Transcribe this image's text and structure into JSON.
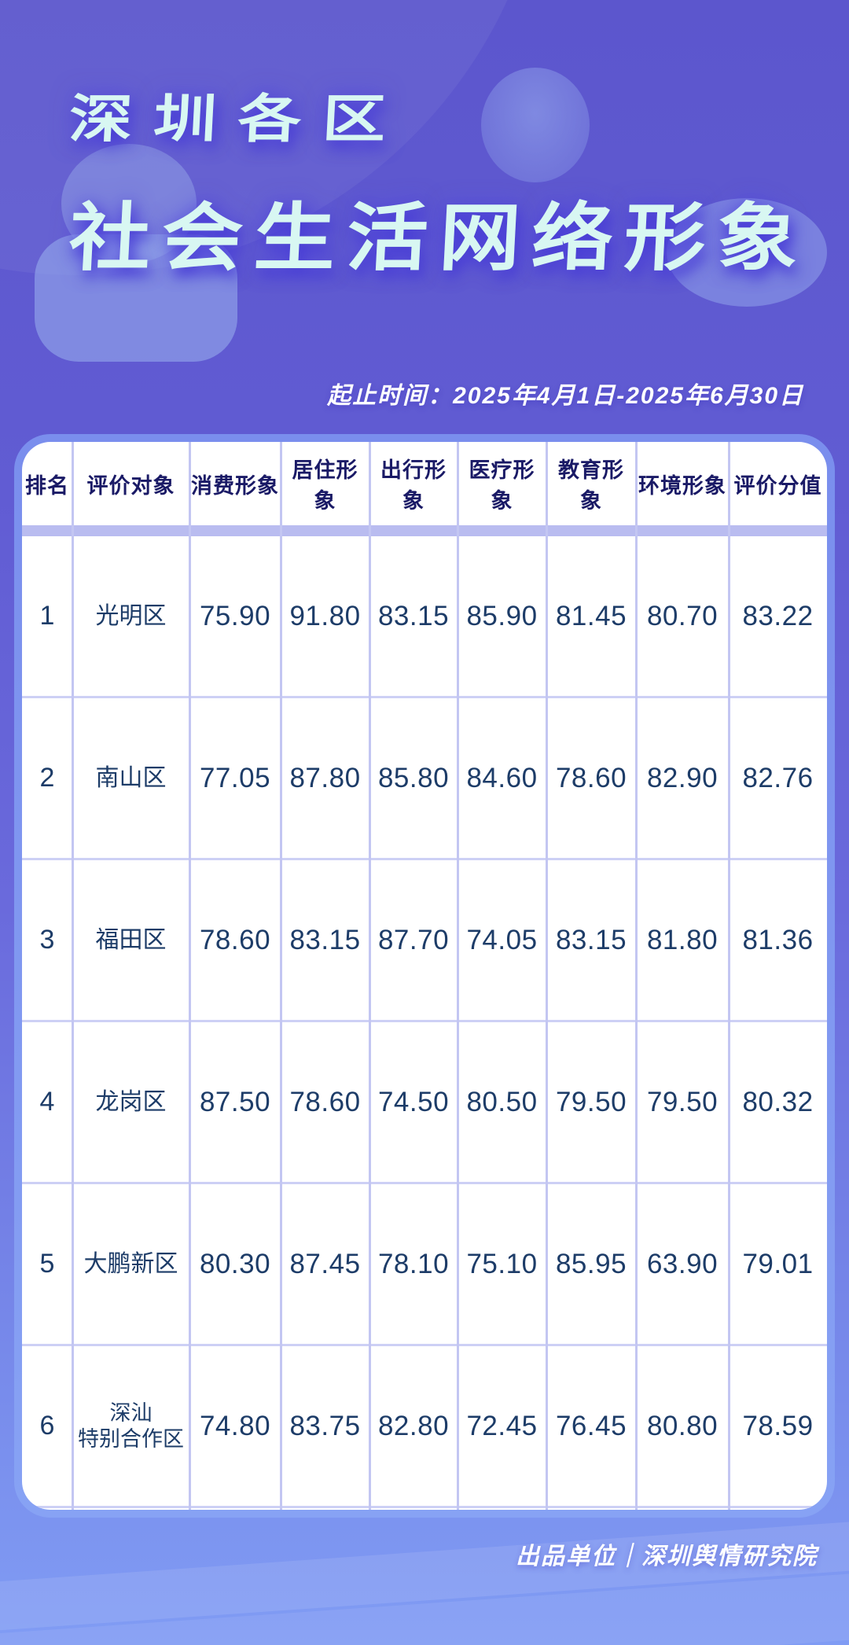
{
  "header": {
    "title_line1": "深圳各区",
    "title_line2": "社会生活网络形象",
    "period_label": "起止时间：2025年4月1日-2025年6月30日"
  },
  "table": {
    "columns": [
      "排名",
      "评价对象",
      "消费形象",
      "居住形象",
      "出行形象",
      "医疗形象",
      "教育形象",
      "环境形象",
      "评价分值"
    ],
    "rows": [
      {
        "rank": "1",
        "name": "光明区",
        "values": [
          "75.90",
          "91.80",
          "83.15",
          "85.90",
          "81.45",
          "80.70",
          "83.22"
        ]
      },
      {
        "rank": "2",
        "name": "南山区",
        "values": [
          "77.05",
          "87.80",
          "85.80",
          "84.60",
          "78.60",
          "82.90",
          "82.76"
        ]
      },
      {
        "rank": "3",
        "name": "福田区",
        "values": [
          "78.60",
          "83.15",
          "87.70",
          "74.05",
          "83.15",
          "81.80",
          "81.36"
        ]
      },
      {
        "rank": "4",
        "name": "龙岗区",
        "values": [
          "87.50",
          "78.60",
          "74.50",
          "80.50",
          "79.50",
          "79.50",
          "80.32"
        ]
      },
      {
        "rank": "5",
        "name": "大鹏新区",
        "values": [
          "80.30",
          "87.45",
          "78.10",
          "75.10",
          "85.95",
          "63.90",
          "79.01"
        ]
      },
      {
        "rank": "6",
        "name": "深汕\n特别合作区",
        "values": [
          "74.80",
          "83.75",
          "82.80",
          "72.45",
          "76.45",
          "80.80",
          "78.59"
        ]
      }
    ]
  },
  "footer": {
    "credit": "出品单位｜深圳舆情研究院"
  },
  "colors": {
    "background_top": "#5c56cd",
    "background_bottom": "#809cf4",
    "title_text": "#d8f7f2",
    "title_glow": "#4a41cf",
    "card_border": "#7a8eed",
    "card_background": "#ffffff",
    "header_text": "#1a1a66",
    "data_text": "#1d3c68",
    "divider": "#c3c6f2",
    "header_band": "#b9bcf0"
  },
  "chart_data": {
    "type": "table",
    "title": "深圳各区社会生活网络形象",
    "period": "2025年4月1日-2025年6月30日",
    "columns": [
      "排名",
      "评价对象",
      "消费形象",
      "居住形象",
      "出行形象",
      "医疗形象",
      "教育形象",
      "环境形象",
      "评价分值"
    ],
    "rows": [
      [
        1,
        "光明区",
        75.9,
        91.8,
        83.15,
        85.9,
        81.45,
        80.7,
        83.22
      ],
      [
        2,
        "南山区",
        77.05,
        87.8,
        85.8,
        84.6,
        78.6,
        82.9,
        82.76
      ],
      [
        3,
        "福田区",
        78.6,
        83.15,
        87.7,
        74.05,
        83.15,
        81.8,
        81.36
      ],
      [
        4,
        "龙岗区",
        87.5,
        78.6,
        74.5,
        80.5,
        79.5,
        79.5,
        80.32
      ],
      [
        5,
        "大鹏新区",
        80.3,
        87.45,
        78.1,
        75.1,
        85.95,
        63.9,
        79.01
      ],
      [
        6,
        "深汕特别合作区",
        74.8,
        83.75,
        82.8,
        72.45,
        76.45,
        80.8,
        78.59
      ]
    ],
    "source": "深圳舆情研究院"
  }
}
